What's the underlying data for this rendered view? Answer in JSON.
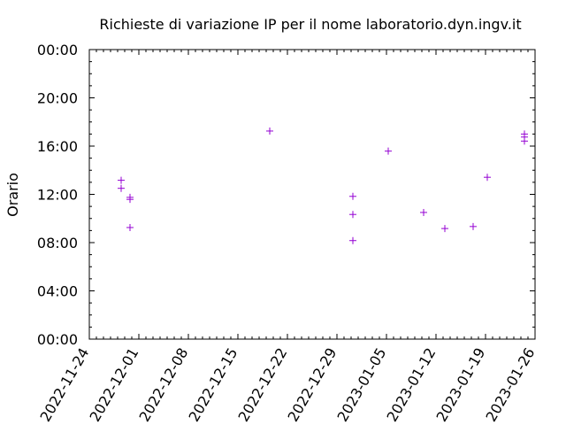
{
  "chart_data": {
    "type": "scatter",
    "title": "Richieste di variazione IP per il nome laboratorio.dyn.ingv.it",
    "xlabel": "",
    "ylabel": "Orario",
    "xlim": [
      "2022-11-24",
      "2023-01-26"
    ],
    "ylim": [
      "00:00",
      "24:00"
    ],
    "x_ticks": [
      "2022-11-24",
      "2022-12-01",
      "2022-12-08",
      "2022-12-15",
      "2022-12-22",
      "2022-12-29",
      "2023-01-05",
      "2023-01-12",
      "2023-01-19",
      "2023-01-26"
    ],
    "y_ticks": [
      "00:00",
      "04:00",
      "08:00",
      "12:00",
      "16:00",
      "20:00",
      "00:00"
    ],
    "y_tick_hours": [
      0,
      4,
      8,
      12,
      16,
      20,
      24
    ],
    "grid": false,
    "marker": "+",
    "marker_color": "#9400d3",
    "points": [
      {
        "x": "2022-11-28 12:00",
        "y": "13:10"
      },
      {
        "x": "2022-11-28 12:00",
        "y": "12:30"
      },
      {
        "x": "2022-11-29 18:00",
        "y": "11:45"
      },
      {
        "x": "2022-11-29 18:00",
        "y": "11:35"
      },
      {
        "x": "2022-11-29 18:00",
        "y": "09:15"
      },
      {
        "x": "2022-12-19 12:00",
        "y": "17:15"
      },
      {
        "x": "2022-12-31 06:00",
        "y": "11:50"
      },
      {
        "x": "2022-12-31 06:00",
        "y": "10:20"
      },
      {
        "x": "2022-12-31 06:00",
        "y": "08:10"
      },
      {
        "x": "2023-01-05 06:00",
        "y": "15:35"
      },
      {
        "x": "2023-01-10 06:00",
        "y": "10:30"
      },
      {
        "x": "2023-01-13 06:00",
        "y": "09:10"
      },
      {
        "x": "2023-01-17 06:00",
        "y": "09:20"
      },
      {
        "x": "2023-01-19 06:00",
        "y": "13:25"
      },
      {
        "x": "2023-01-24 12:00",
        "y": "17:00"
      },
      {
        "x": "2023-01-24 12:00",
        "y": "16:45"
      },
      {
        "x": "2023-01-24 12:00",
        "y": "16:25"
      }
    ]
  }
}
